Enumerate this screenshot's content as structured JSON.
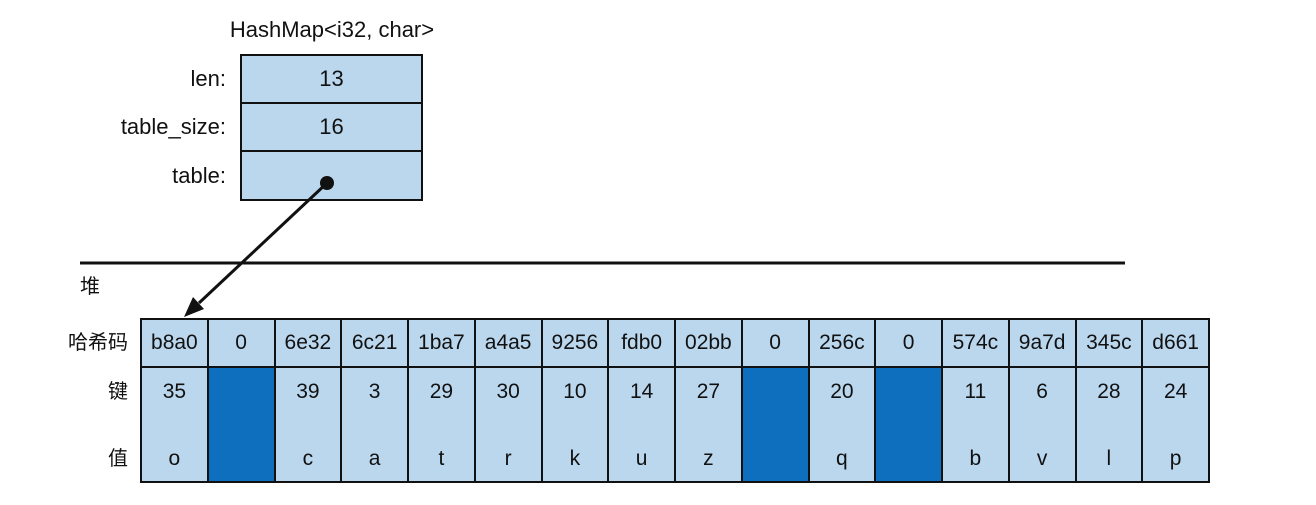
{
  "struct": {
    "title": "HashMap<i32, char>",
    "fields": [
      {
        "label": "len:",
        "value": "13"
      },
      {
        "label": "table_size:",
        "value": "16"
      },
      {
        "label": "table:",
        "is_pointer": true
      }
    ]
  },
  "heap": {
    "label": "堆",
    "row_labels": {
      "hash": "哈希码",
      "key": "键",
      "value": "值"
    },
    "buckets": [
      {
        "hash": "b8a0",
        "key": "35",
        "value": "o"
      },
      {
        "hash": "0",
        "empty": true
      },
      {
        "hash": "6e32",
        "key": "39",
        "value": "c"
      },
      {
        "hash": "6c21",
        "key": "3",
        "value": "a"
      },
      {
        "hash": "1ba7",
        "key": "29",
        "value": "t"
      },
      {
        "hash": "a4a5",
        "key": "30",
        "value": "r"
      },
      {
        "hash": "9256",
        "key": "10",
        "value": "k"
      },
      {
        "hash": "fdb0",
        "key": "14",
        "value": "u"
      },
      {
        "hash": "02bb",
        "key": "27",
        "value": "z"
      },
      {
        "hash": "0",
        "empty": true
      },
      {
        "hash": "256c",
        "key": "20",
        "value": "q"
      },
      {
        "hash": "0",
        "empty": true
      },
      {
        "hash": "574c",
        "key": "11",
        "value": "b"
      },
      {
        "hash": "9a7d",
        "key": "6",
        "value": "v"
      },
      {
        "hash": "345c",
        "key": "28",
        "value": "l"
      },
      {
        "hash": "d661",
        "key": "24",
        "value": "p"
      }
    ]
  },
  "colors": {
    "cell_fill": "#bad7ee",
    "empty_fill": "#0d6fbd",
    "border": "#111111"
  }
}
